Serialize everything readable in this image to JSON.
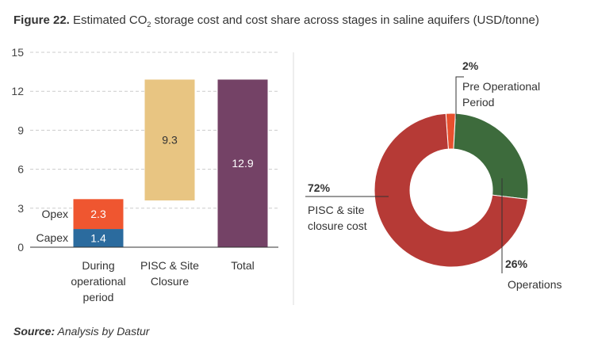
{
  "title": {
    "label": "Figure 22.",
    "text_pre": "Estimated CO",
    "sub": "2",
    "text_post": " storage cost and cost share across stages in saline aquifers (USD/tonne)"
  },
  "source": {
    "label": "Source:",
    "text": " Analysis by Dastur"
  },
  "chart_data": [
    {
      "type": "bar",
      "stacked": true,
      "categories": [
        [
          "During",
          "operational",
          "period"
        ],
        [
          "PISC & Site",
          "Closure"
        ],
        [
          "Total"
        ]
      ],
      "yticks": [
        "0",
        "3",
        "6",
        "9",
        "12",
        "15"
      ],
      "ylim": [
        0,
        15
      ],
      "grid": true,
      "segments": [
        {
          "name": "Capex",
          "category": 0,
          "base": 0,
          "value": 1.4,
          "label": "1.4",
          "color": "#2b6b9e"
        },
        {
          "name": "Opex",
          "category": 0,
          "base": 1.4,
          "value": 2.3,
          "label": "2.3",
          "color": "#ef5630"
        },
        {
          "name": "PISC & Site Closure",
          "category": 1,
          "base": 3.6,
          "value": 9.3,
          "label": "9.3",
          "color": "#e8c582"
        },
        {
          "name": "Total",
          "category": 2,
          "base": 0,
          "value": 12.9,
          "label": "12.9",
          "color": "#744266"
        }
      ],
      "side_labels": [
        "Capex",
        "Opex"
      ]
    },
    {
      "type": "pie",
      "donut": true,
      "slices": [
        {
          "name": "Pre Operational Period",
          "value": 2,
          "pct": "2%",
          "label_lines": [
            "Pre Operational",
            "Period"
          ],
          "color": "#e8502e"
        },
        {
          "name": "Operations",
          "value": 26,
          "pct": "26%",
          "label_lines": [
            "Operations"
          ],
          "color": "#3d6b3c"
        },
        {
          "name": "PISC & site closure cost",
          "value": 72,
          "pct": "72%",
          "label_lines": [
            "PISC & site",
            "closure cost"
          ],
          "color": "#b63a36"
        }
      ]
    }
  ]
}
